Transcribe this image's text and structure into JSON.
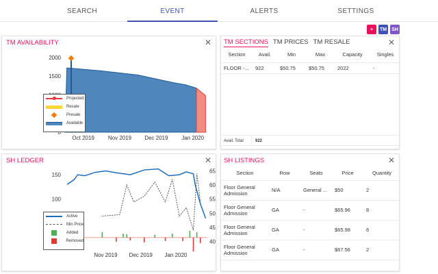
{
  "tabs": [
    {
      "label": "SEARCH",
      "active": false
    },
    {
      "label": "EVENT",
      "active": true
    },
    {
      "label": "ALERTS",
      "active": false
    },
    {
      "label": "SETTINGS",
      "active": false
    }
  ],
  "toolbar": {
    "add_label": "+",
    "tm_label": "TM",
    "sh_label": "SH",
    "add_color": "#e8115b",
    "tm_color": "#3f51b5",
    "sh_color": "#7e57c2"
  },
  "tm_availability": {
    "title": "TM AVAILABILITY",
    "close": "✕",
    "legend": [
      "Projected",
      "Resale",
      "Presale",
      "Available"
    ],
    "chart_data": {
      "type": "area",
      "title": "TM AVAILABILITY",
      "x_ticks": [
        "Oct 2019",
        "Nov 2019",
        "Dec 2019",
        "Jan 2020"
      ],
      "y_ticks": [
        0,
        500,
        1000,
        1500,
        2000
      ],
      "ylim": [
        0,
        2200
      ],
      "series": [
        {
          "name": "Available",
          "color": "#4f87bd",
          "x": [
            0,
            0.05,
            0.3,
            1,
            2,
            3,
            3.3,
            3.6
          ],
          "values": [
            0,
            1720,
            1700,
            1640,
            1530,
            1320,
            1270,
            1180
          ]
        },
        {
          "name": "Projected",
          "color": "#e53935",
          "x": [
            3.6,
            3.85
          ],
          "values": [
            1180,
            980
          ]
        },
        {
          "name": "Presale",
          "color": "#f57c00",
          "x": [
            0.0
          ],
          "values": [
            1980
          ]
        }
      ]
    }
  },
  "tm_sections": {
    "subtabs": [
      "TM SECTIONS",
      "TM PRICES",
      "TM RESALE"
    ],
    "close": "✕",
    "columns": [
      "Section",
      "Avail.",
      "Min",
      "Max",
      "Capacity",
      "Singles"
    ],
    "rows": [
      [
        "FLOOR -...",
        "922",
        "$50.75",
        "$50.75",
        "2022",
        "-"
      ]
    ],
    "total_label": "Avail. Total",
    "total_value": "922"
  },
  "sh_ledger": {
    "title": "SH LEDGER",
    "close": "✕",
    "legend": [
      "Active",
      "Min Price",
      "Added",
      "Removed"
    ],
    "chart_data": {
      "type": "line",
      "title": "SH LEDGER",
      "x_ticks": [
        "Nov 2019",
        "Dec 2019",
        "Jan 2020"
      ],
      "y_left_ticks": [
        50,
        100,
        150
      ],
      "y_right_ticks": [
        40,
        45,
        50,
        55,
        60,
        65
      ],
      "ylim_left": [
        0,
        170
      ],
      "ylim_right": [
        38,
        67
      ],
      "series": [
        {
          "name": "Active",
          "axis": "left",
          "color": "#1e6bb8",
          "x": [
            -0.6,
            -0.4,
            -0.3,
            -0.1,
            0.2,
            0.5,
            0.8,
            1.2,
            1.6,
            2.0,
            2.3,
            2.6,
            2.8,
            3.0,
            3.05,
            3.2,
            3.35
          ],
          "values": [
            130,
            140,
            150,
            148,
            155,
            158,
            154,
            150,
            160,
            162,
            148,
            150,
            156,
            152,
            130,
            90,
            60
          ]
        },
        {
          "name": "Min Price",
          "axis": "right",
          "color": "#555",
          "x": [
            0.4,
            0.9,
            1.1,
            1.3,
            1.6,
            1.9,
            2.2,
            2.4,
            2.6,
            2.8,
            3.0,
            3.1,
            3.2
          ],
          "values": [
            49,
            49.5,
            60,
            54,
            56,
            61,
            54,
            62,
            49,
            52,
            44,
            64,
            54
          ]
        },
        {
          "name": "Added",
          "color": "#4caf50",
          "x": [
            0.4,
            1.0,
            1.1,
            1.9,
            2.4,
            2.9,
            3.1
          ],
          "values": [
            8,
            6,
            5,
            4,
            6,
            10,
            8
          ]
        },
        {
          "name": "Removed",
          "color": "#e53935",
          "x": [
            0.8,
            1.2,
            1.6,
            2.2,
            2.7,
            3.0,
            3.2
          ],
          "values": [
            -6,
            -4,
            -7,
            -5,
            -5,
            -20,
            -8
          ]
        }
      ]
    }
  },
  "sh_listings": {
    "title": "SH LISTINGS",
    "close": "✕",
    "columns": [
      "Section",
      "Row",
      "Seats",
      "Price",
      "Quantity"
    ],
    "rows": [
      [
        "Floor General Admission",
        "N/A",
        "General ...",
        "$50",
        "2"
      ],
      [
        "Floor General Admission",
        "GA",
        "-",
        "$65.96",
        "8"
      ],
      [
        "Floor General Admission",
        "GA",
        "-",
        "$65.98",
        "6"
      ],
      [
        "Floor General Admission",
        "GA",
        "-",
        "$67.56",
        "2"
      ]
    ]
  }
}
